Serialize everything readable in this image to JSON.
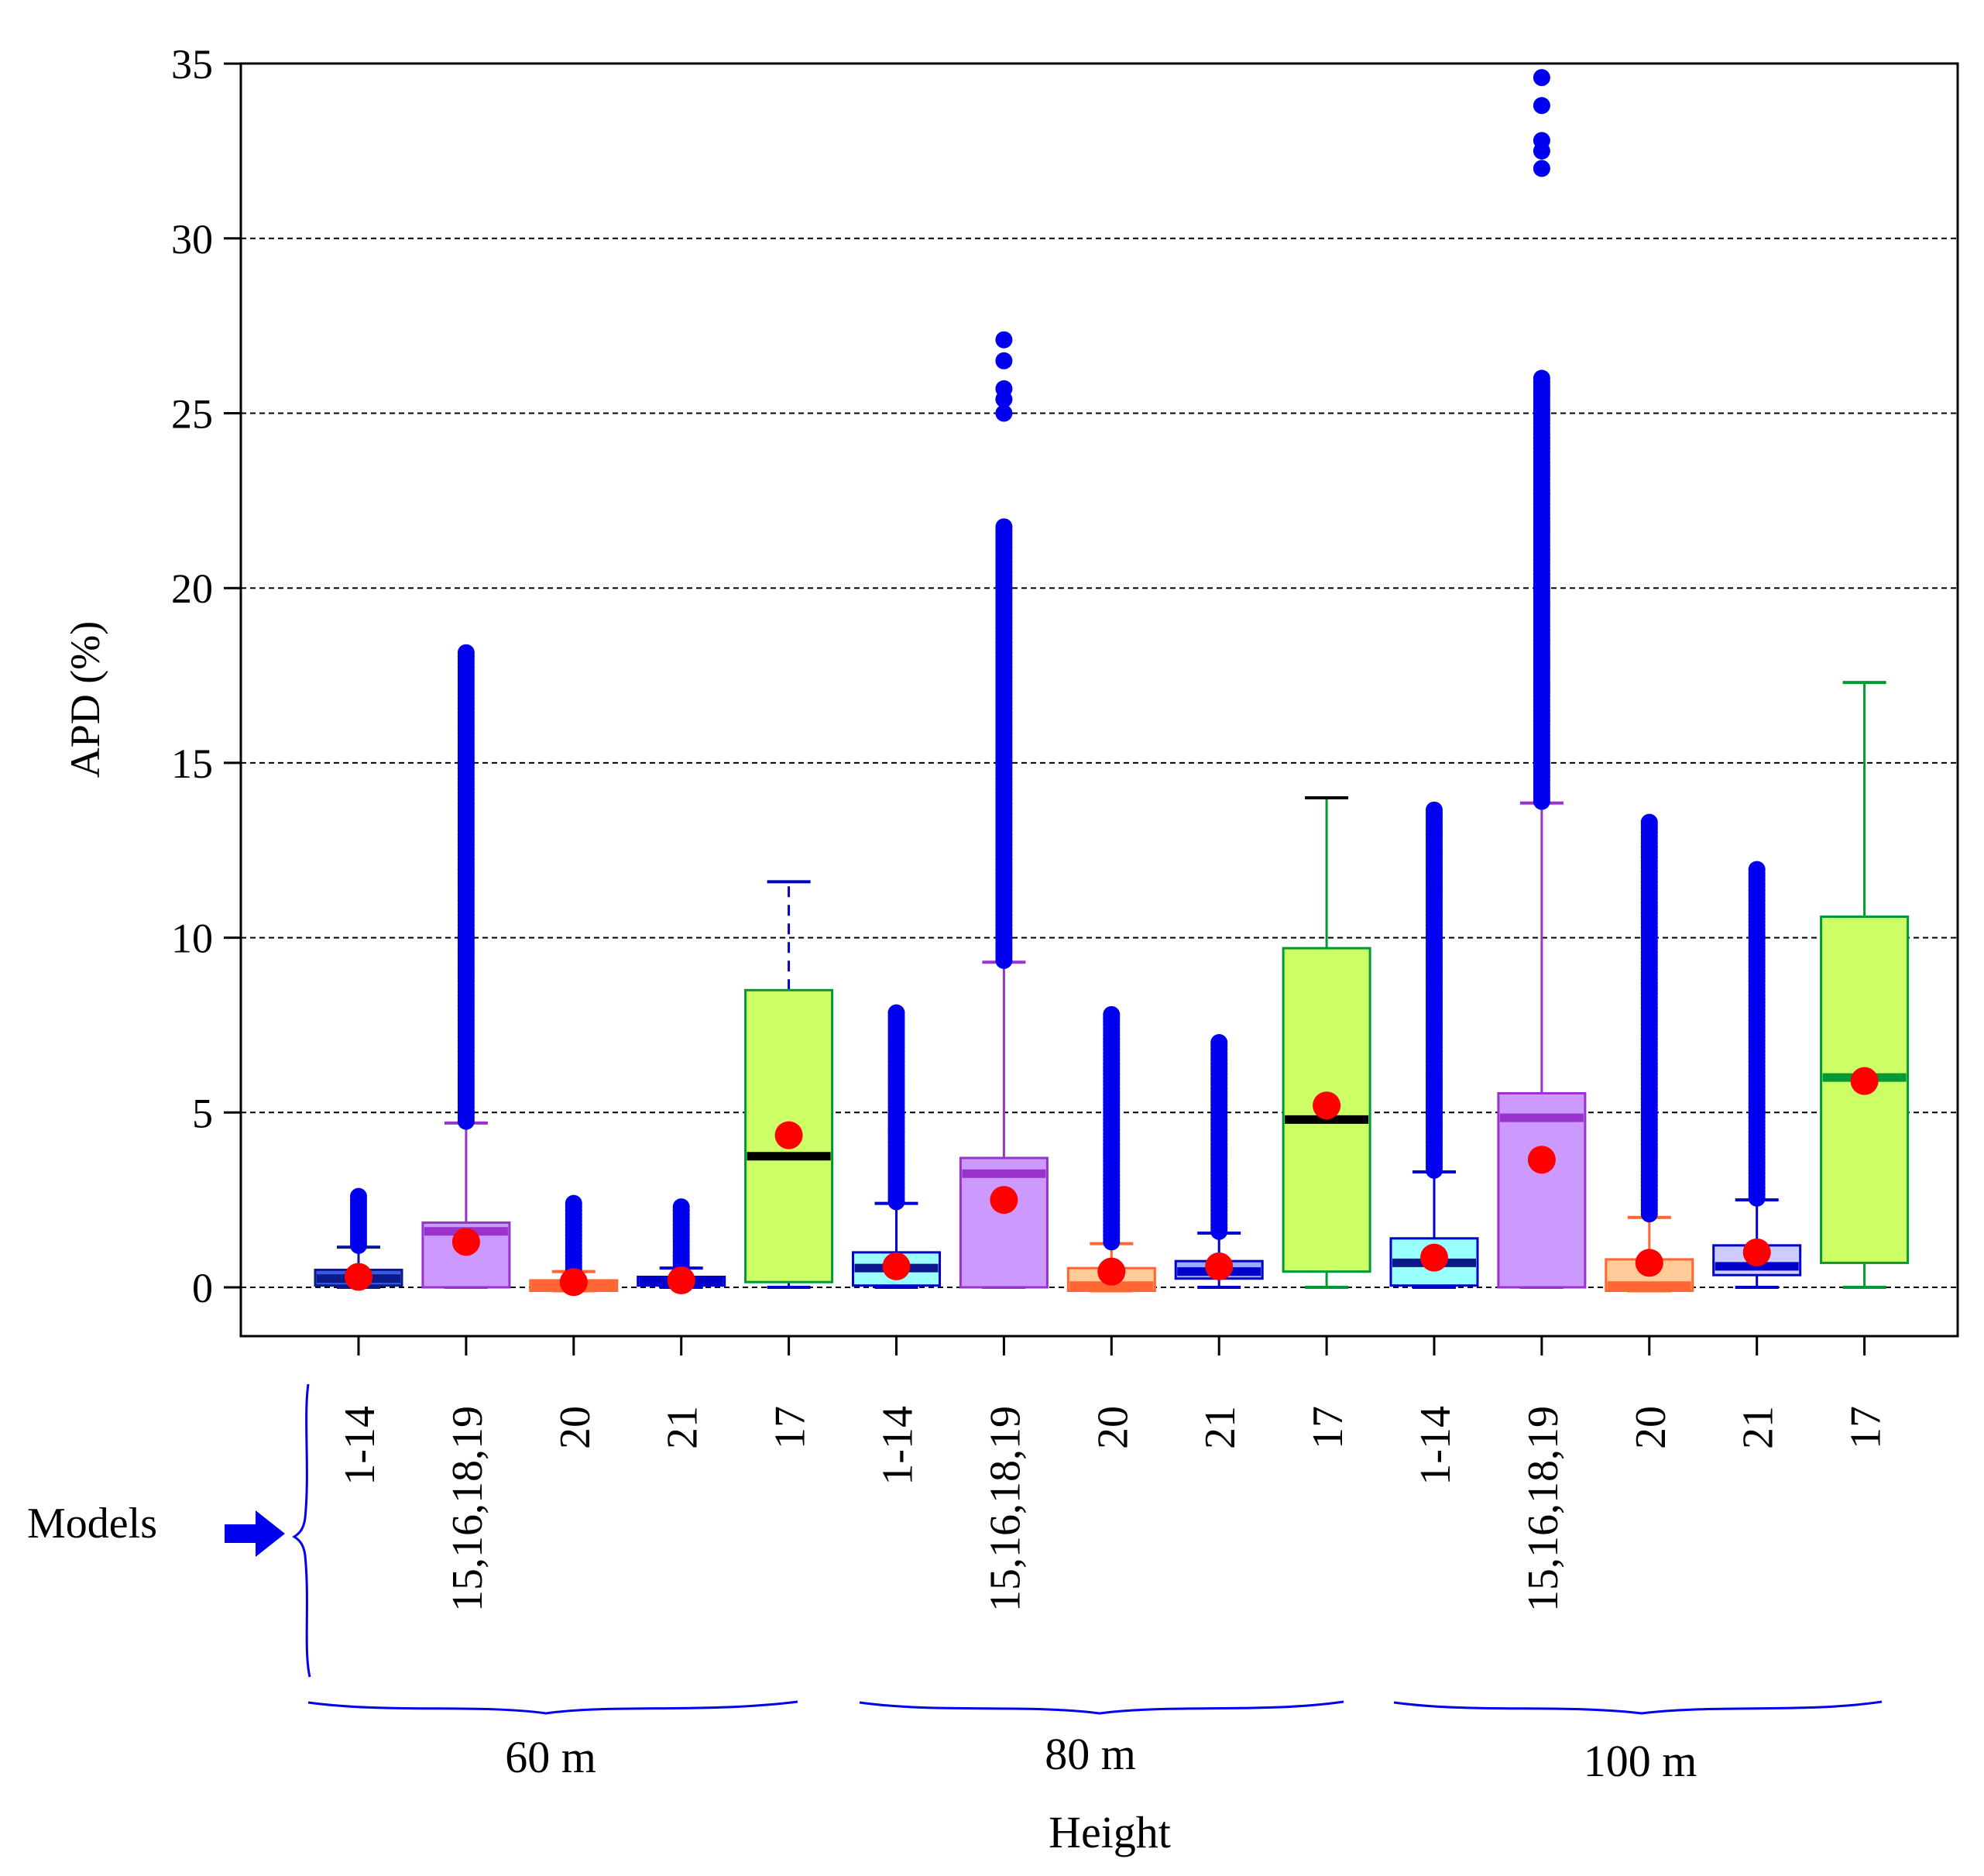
{
  "chart_data": {
    "type": "box",
    "ylabel": "APD (%)",
    "xlabel": "Height",
    "models_label": "Models",
    "ylim": [
      -1.4,
      35
    ],
    "yticks": [
      0,
      5,
      10,
      15,
      20,
      25,
      30,
      35
    ],
    "ytick_labels": [
      "0",
      "5",
      "10",
      "15",
      "20",
      "25",
      "30",
      "35"
    ],
    "grid": "horizontal dashed",
    "groups": [
      {
        "label": "60 m",
        "from": 0,
        "to": 4
      },
      {
        "label": "80 m",
        "from": 5,
        "to": 9
      },
      {
        "label": "100 m",
        "from": 10,
        "to": 14
      }
    ],
    "boxes": [
      {
        "label": "1-14",
        "fill": "#3b5bd9",
        "stroke": "#0a1a8c",
        "median_color": "#0a1a8c",
        "whisker_color": "#0a1a8c",
        "whisker_low": 0,
        "q1": 0.05,
        "median": 0.25,
        "q3": 0.5,
        "whisker_high": 1.15,
        "mean": 0.3,
        "outliers": {
          "from": 1.2,
          "to": 2.6,
          "step": 0.1
        }
      },
      {
        "label": "15,16,18,19",
        "fill": "#cc99ff",
        "stroke": "#9933cc",
        "median_color": "#9933cc",
        "whisker_color": "#9933cc",
        "whisker_low": 0,
        "q1": 0,
        "median": 1.6,
        "q3": 1.85,
        "whisker_high": 4.7,
        "mean": 1.3,
        "outliers": {
          "from": 4.75,
          "to": 18.2,
          "step": 0.1
        }
      },
      {
        "label": "20",
        "fill": "#ff9966",
        "stroke": "#ff6633",
        "median_color": "#ff6633",
        "whisker_color": "#ff6633",
        "whisker_low": -0.1,
        "q1": -0.1,
        "median": 0.05,
        "q3": 0.2,
        "whisker_high": 0.45,
        "mean": 0.15,
        "outliers": {
          "from": 0.5,
          "to": 2.4,
          "step": 0.1
        }
      },
      {
        "label": "21",
        "fill": "#3355ff",
        "stroke": "#0000cc",
        "median_color": "#0000cc",
        "whisker_color": "#0000cc",
        "whisker_low": 0,
        "q1": 0.05,
        "median": 0.2,
        "q3": 0.3,
        "whisker_high": 0.55,
        "mean": 0.2,
        "outliers": {
          "from": 0.6,
          "to": 2.3,
          "step": 0.1
        }
      },
      {
        "label": "17",
        "fill": "#ccff66",
        "stroke": "#009933",
        "median_color": "#000000",
        "whisker_color": "#0000cc",
        "whisker_dash": true,
        "whisker_low": 0,
        "q1": 0.15,
        "median": 3.75,
        "q3": 8.5,
        "whisker_high": 11.6,
        "mean": 4.35
      },
      {
        "label": "1-14",
        "fill": "#99ffff",
        "stroke": "#0000cc",
        "median_color": "#0a1a8c",
        "whisker_color": "#0000cc",
        "whisker_low": 0,
        "q1": 0.05,
        "median": 0.55,
        "q3": 1.0,
        "whisker_high": 2.4,
        "mean": 0.6,
        "outliers": {
          "from": 2.45,
          "to": 7.9,
          "step": 0.1
        }
      },
      {
        "label": "15,16,18,19",
        "fill": "#cc99ff",
        "stroke": "#9933cc",
        "median_color": "#9933cc",
        "whisker_color": "#9933cc",
        "whisker_low": 0,
        "q1": 0,
        "median": 3.25,
        "q3": 3.7,
        "whisker_high": 9.3,
        "mean": 2.5,
        "outliers": {
          "from": 9.35,
          "to": 21.8,
          "step": 0.1,
          "extra": [
            25.0,
            25.4,
            25.7,
            26.5,
            27.1
          ]
        }
      },
      {
        "label": "20",
        "fill": "#ffcc99",
        "stroke": "#ff6633",
        "median_color": "#ff6633",
        "whisker_color": "#ff6633",
        "whisker_low": -0.1,
        "q1": -0.1,
        "median": 0.05,
        "q3": 0.55,
        "whisker_high": 1.25,
        "mean": 0.45,
        "outliers": {
          "from": 1.3,
          "to": 7.8,
          "step": 0.1
        }
      },
      {
        "label": "21",
        "fill": "#99aaff",
        "stroke": "#0000cc",
        "median_color": "#0000cc",
        "whisker_color": "#0000cc",
        "whisker_low": 0,
        "q1": 0.25,
        "median": 0.45,
        "q3": 0.75,
        "whisker_high": 1.55,
        "mean": 0.6,
        "outliers": {
          "from": 1.6,
          "to": 7.0,
          "step": 0.1
        }
      },
      {
        "label": "17",
        "fill": "#ccff66",
        "stroke": "#009933",
        "median_color": "#000000",
        "whisker_color": "#009933",
        "whisker_low": 0,
        "q1": 0.45,
        "median": 4.8,
        "q3": 9.7,
        "whisker_high": 14.0,
        "mean": 5.2,
        "cap_color": "#000000"
      },
      {
        "label": "1-14",
        "fill": "#99ffff",
        "stroke": "#0000cc",
        "median_color": "#0a1a8c",
        "whisker_color": "#0000cc",
        "whisker_low": 0,
        "q1": 0.05,
        "median": 0.7,
        "q3": 1.4,
        "whisker_high": 3.3,
        "mean": 0.85,
        "outliers": {
          "from": 3.35,
          "to": 13.7,
          "step": 0.1
        }
      },
      {
        "label": "15,16,18,19",
        "fill": "#cc99ff",
        "stroke": "#9933cc",
        "median_color": "#9933cc",
        "whisker_color": "#9933cc",
        "whisker_low": 0,
        "q1": 0,
        "median": 4.85,
        "q3": 5.55,
        "whisker_high": 13.85,
        "mean": 3.65,
        "outliers": {
          "from": 13.9,
          "to": 26.0,
          "step": 0.1,
          "extra": [
            32.0,
            32.5,
            32.8,
            33.8,
            34.6
          ]
        }
      },
      {
        "label": "20",
        "fill": "#ffcc99",
        "stroke": "#ff6633",
        "median_color": "#ff6633",
        "whisker_color": "#ff6633",
        "whisker_low": -0.1,
        "q1": -0.1,
        "median": 0.05,
        "q3": 0.8,
        "whisker_high": 2.0,
        "mean": 0.7,
        "outliers": {
          "from": 2.1,
          "to": 13.3,
          "step": 0.1
        }
      },
      {
        "label": "21",
        "fill": "#ccccff",
        "stroke": "#0000cc",
        "median_color": "#0000cc",
        "whisker_color": "#0000cc",
        "whisker_low": 0,
        "q1": 0.35,
        "median": 0.6,
        "q3": 1.2,
        "whisker_high": 2.5,
        "mean": 1.0,
        "outliers": {
          "from": 2.55,
          "to": 12.0,
          "step": 0.1
        }
      },
      {
        "label": "17",
        "fill": "#ccff66",
        "stroke": "#009933",
        "median_color": "#009933",
        "whisker_color": "#009933",
        "whisker_low": 0,
        "q1": 0.7,
        "median": 6.0,
        "q3": 10.6,
        "whisker_high": 17.3,
        "mean": 5.9
      }
    ],
    "colors": {
      "outlier": "#0000ee",
      "mean": "#ff0000",
      "annotation": "#0000ee",
      "grid": "#000000"
    }
  }
}
